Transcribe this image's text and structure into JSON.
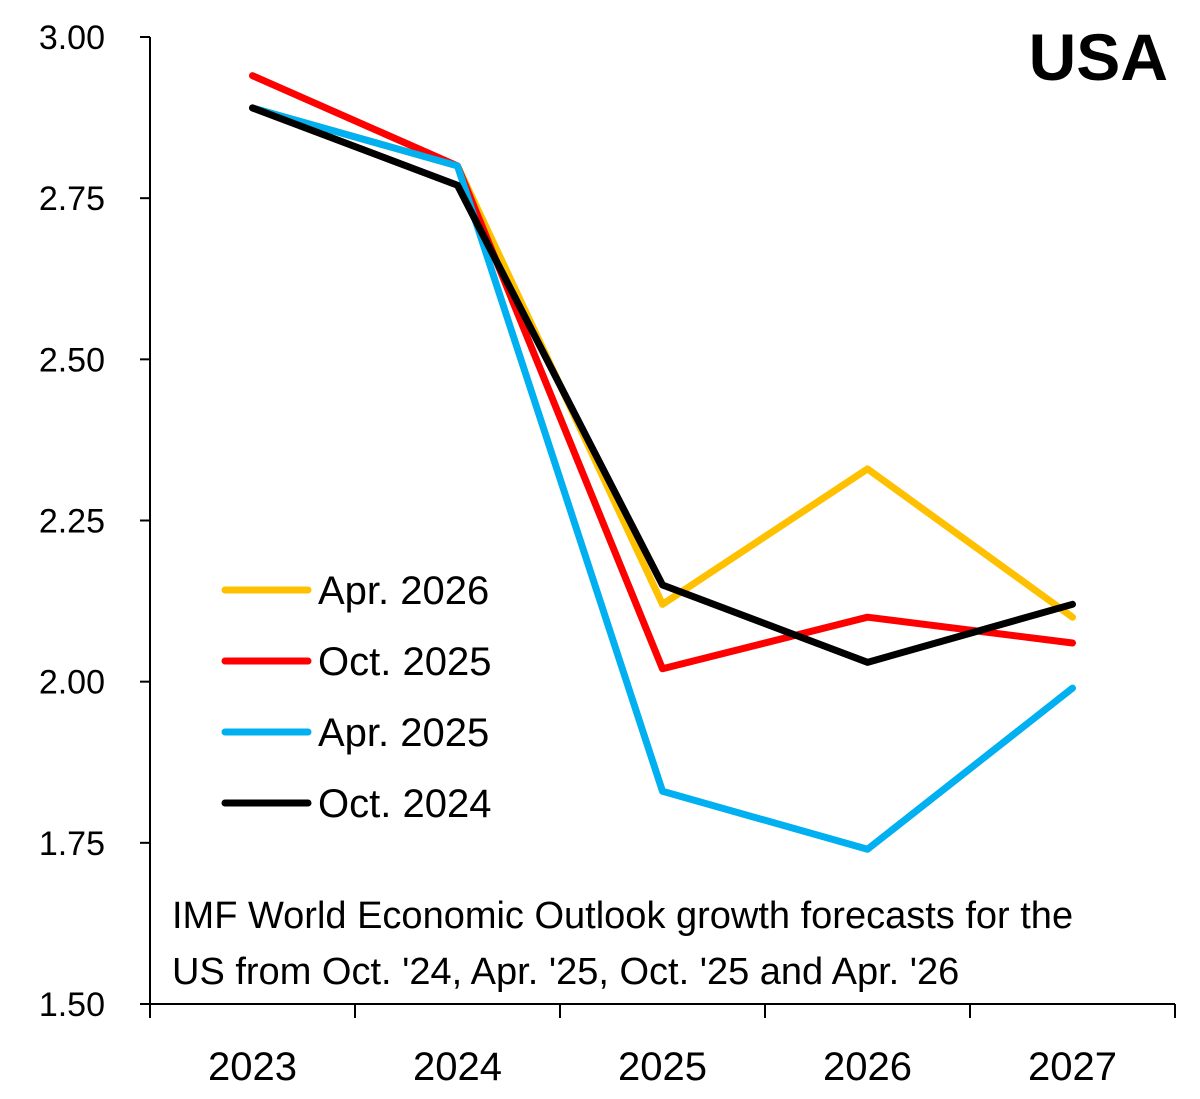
{
  "chart_data": {
    "type": "line",
    "title": "USA",
    "annotation": [
      "IMF World Economic Outlook growth forecasts for the",
      "US from Oct. '24, Apr. '25, Oct. '25 and Apr. '26"
    ],
    "categories": [
      "2023",
      "2024",
      "2025",
      "2026",
      "2027"
    ],
    "ylim": [
      1.5,
      3.0
    ],
    "yticks": [
      "1.50",
      "1.75",
      "2.00",
      "2.25",
      "2.50",
      "2.75",
      "3.00"
    ],
    "grid": false,
    "legend_placement": "center-left",
    "series": [
      {
        "name": "Apr. 2026",
        "color": "#FFC000",
        "values": [
          2.89,
          2.8,
          2.12,
          2.33,
          2.1
        ]
      },
      {
        "name": "Oct. 2025",
        "color": "#FF0000",
        "values": [
          2.94,
          2.8,
          2.02,
          2.1,
          2.06
        ]
      },
      {
        "name": "Apr. 2025",
        "color": "#00B0F0",
        "values": [
          2.89,
          2.8,
          1.83,
          1.74,
          1.99
        ]
      },
      {
        "name": "Oct. 2024",
        "color": "#000000",
        "values": [
          2.89,
          2.77,
          2.15,
          2.03,
          2.12
        ]
      }
    ]
  }
}
